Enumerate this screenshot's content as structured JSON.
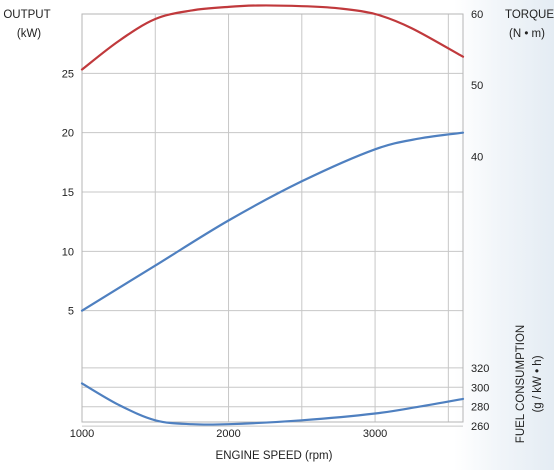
{
  "chart_data": {
    "type": "line",
    "xlabel": "ENGINE SPEED (rpm)",
    "xlim": [
      1000,
      3600
    ],
    "x_ticks": [
      1000,
      2000,
      3000
    ],
    "left_axis": {
      "label_line1": "OUTPUT",
      "label_line2": "(kW)",
      "ylim": [
        0,
        30
      ],
      "ticks": [
        5,
        10,
        15,
        20,
        25
      ]
    },
    "right_axis_torque": {
      "label_line1": "TORQUE",
      "label_line2": "(N • m)",
      "ylim": [
        10,
        60
      ],
      "ticks": [
        40,
        50,
        60
      ]
    },
    "right_axis_fuel": {
      "label_line1": "FUEL CONSUMPTION",
      "label_line2": "(g / kW • h)",
      "ylim": [
        255,
        325
      ],
      "ticks": [
        260,
        280,
        300,
        320
      ]
    },
    "series": [
      {
        "axis": "right_axis_torque",
        "color": "#c0393c",
        "x": [
          1000,
          1250,
          1500,
          1750,
          2000,
          2200,
          2500,
          2750,
          3000,
          3250,
          3600
        ],
        "values": [
          52.2,
          56.2,
          59.3,
          60.5,
          61.0,
          61.2,
          61.1,
          60.8,
          60.0,
          58.0,
          54.0
        ]
      },
      {
        "axis": "left_axis",
        "color": "#4f80c0",
        "x": [
          1000,
          1500,
          2000,
          2500,
          3000,
          3300,
          3600
        ],
        "values": [
          5.0,
          8.8,
          12.6,
          15.9,
          18.6,
          19.5,
          20.0
        ]
      },
      {
        "axis": "right_axis_fuel",
        "color": "#4f80c0",
        "x": [
          1000,
          1250,
          1500,
          1750,
          2000,
          2500,
          3000,
          3300,
          3600
        ],
        "values": [
          304,
          282,
          266,
          262,
          262,
          266,
          273,
          280,
          288
        ]
      }
    ]
  }
}
